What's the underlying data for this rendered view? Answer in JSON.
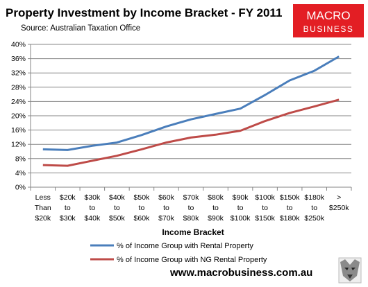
{
  "header": {
    "title": "Property Investment by Income Bracket - FY 2011",
    "source": "Source:  Australian Taxation Office"
  },
  "logo": {
    "line1": "MACRO",
    "line2": "BUSINESS",
    "bg_color": "#e31e24"
  },
  "footer": {
    "website": "www.macrobusiness.com.au"
  },
  "chart_data": {
    "type": "line",
    "xlabel": "Income Bracket",
    "ylabel": "",
    "ylim": [
      0,
      40
    ],
    "y_ticks": [
      "0%",
      "4%",
      "8%",
      "12%",
      "16%",
      "20%",
      "24%",
      "28%",
      "32%",
      "36%",
      "40%"
    ],
    "grid": "horizontal",
    "legend_position": "bottom",
    "categories": [
      [
        "Less",
        "Than",
        "$20k"
      ],
      [
        "$20k",
        "to",
        "$30k"
      ],
      [
        "$30k",
        "to",
        "$40k"
      ],
      [
        "$40k",
        "to",
        "$50k"
      ],
      [
        "$50k",
        "to",
        "$60k"
      ],
      [
        "$60k",
        "to",
        "$70k"
      ],
      [
        "$70k",
        "to",
        "$80k"
      ],
      [
        "$80k",
        "to",
        "$90k"
      ],
      [
        "$90k",
        "to",
        "$100k"
      ],
      [
        "$100k",
        "to",
        "$150k"
      ],
      [
        "$150k",
        "to",
        "$180k"
      ],
      [
        "$180k",
        "to",
        "$250k"
      ],
      [
        ">",
        "$250k"
      ]
    ],
    "series": [
      {
        "name": "% of Income Group with Rental Property",
        "color": "#4a7ebb",
        "values": [
          10.6,
          10.4,
          11.6,
          12.5,
          14.6,
          17.0,
          19.0,
          20.5,
          22.0,
          25.8,
          29.9,
          32.6,
          36.6
        ]
      },
      {
        "name": "% of Income Group with NG Rental Property",
        "color": "#be4b48",
        "values": [
          6.2,
          6.0,
          7.4,
          8.8,
          10.6,
          12.5,
          13.9,
          14.7,
          15.8,
          18.5,
          20.8,
          22.6,
          24.5
        ]
      }
    ]
  }
}
